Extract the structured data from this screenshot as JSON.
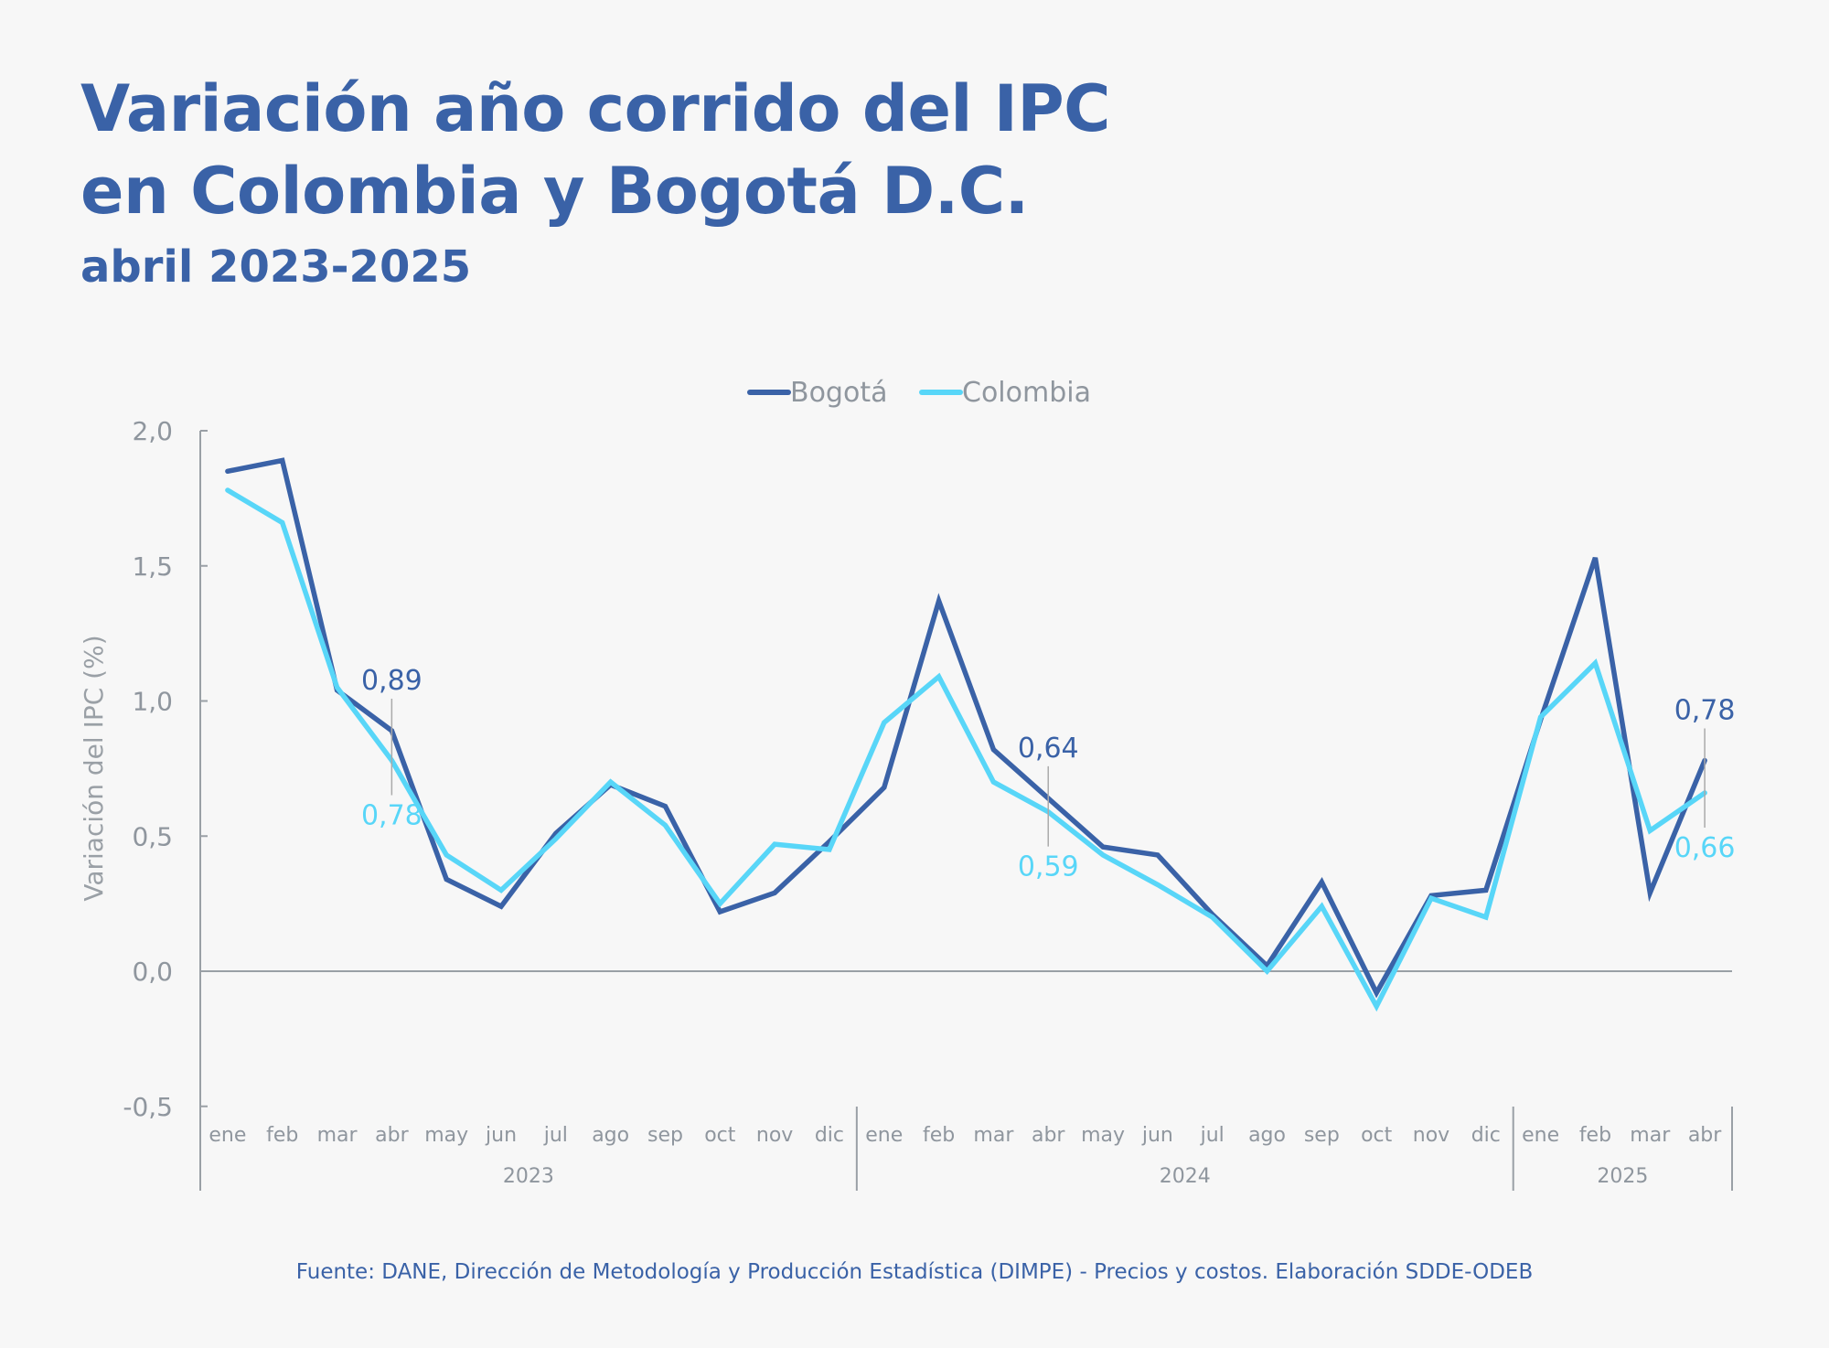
{
  "header": {
    "title_line1": "Variación año corrido del IPC",
    "title_line2": "en Colombia y Bogotá D.C.",
    "subtitle": "abril 2023-2025"
  },
  "source": "Fuente: DANE, Dirección de Metodología y Producción Estadística (DIMPE) - Precios y costos. Elaboración SDDE-ODEB",
  "chart_data": {
    "type": "line",
    "title": "Variación año corrido del IPC en Colombia y Bogotá D.C.",
    "subtitle": "abril 2023-2025",
    "xlabel": "",
    "ylabel": "Variación del IPC (%)",
    "ylim": [
      -0.5,
      2.0
    ],
    "yticks": [
      2.0,
      1.5,
      1.0,
      0.5,
      0.0,
      -0.5
    ],
    "ytick_labels": [
      "2,0",
      "1,5",
      "1,0",
      "0,5",
      "0,0",
      "-0,5"
    ],
    "grid": false,
    "legend_position": "top-center",
    "x": [
      "ene",
      "feb",
      "mar",
      "abr",
      "may",
      "jun",
      "jul",
      "ago",
      "sep",
      "oct",
      "nov",
      "dic",
      "ene",
      "feb",
      "mar",
      "abr",
      "may",
      "jun",
      "jul",
      "ago",
      "sep",
      "oct",
      "nov",
      "dic",
      "ene",
      "feb",
      "mar",
      "abr"
    ],
    "year_groups": [
      {
        "label": "2023",
        "months": 12
      },
      {
        "label": "2024",
        "months": 12
      },
      {
        "label": "2025",
        "months": 4
      }
    ],
    "series": [
      {
        "name": "Bogotá",
        "color": "#3a62a7",
        "values": [
          1.85,
          1.89,
          1.04,
          0.89,
          0.34,
          0.24,
          0.51,
          0.69,
          0.61,
          0.22,
          0.29,
          0.48,
          0.68,
          1.37,
          0.82,
          0.64,
          0.46,
          0.43,
          0.21,
          0.02,
          0.33,
          -0.08,
          0.28,
          0.3,
          0.93,
          1.53,
          0.29,
          0.78
        ]
      },
      {
        "name": "Colombia",
        "color": "#58d6f8",
        "values": [
          1.78,
          1.66,
          1.05,
          0.78,
          0.43,
          0.3,
          0.49,
          0.7,
          0.54,
          0.25,
          0.47,
          0.45,
          0.92,
          1.09,
          0.7,
          0.59,
          0.43,
          0.32,
          0.2,
          0.0,
          0.24,
          -0.13,
          0.27,
          0.2,
          0.94,
          1.14,
          0.52,
          0.66
        ]
      }
    ],
    "annotations": [
      {
        "index": 3,
        "bogota": "0,89",
        "colombia": "0,78"
      },
      {
        "index": 15,
        "bogota": "0,64",
        "colombia": "0,59"
      },
      {
        "index": 27,
        "bogota": "0,78",
        "colombia": "0,66"
      }
    ],
    "axis_color": "#9aa0a6"
  }
}
